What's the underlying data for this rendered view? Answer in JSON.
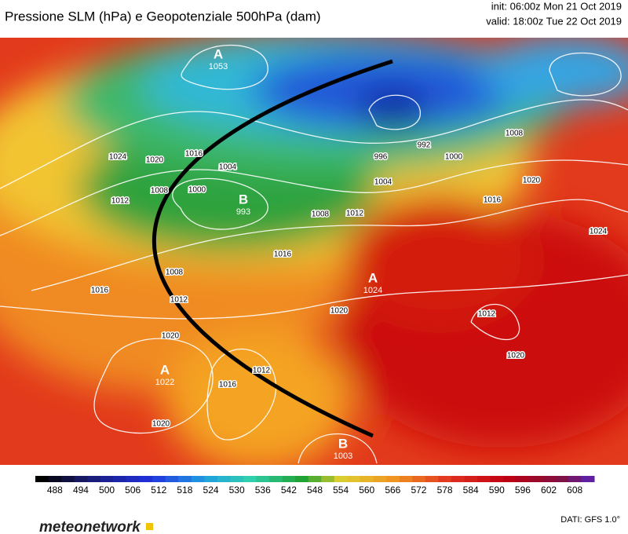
{
  "header": {
    "title": "Pressione SLM (hPa) e Geopotenziale 500hPa (dam)",
    "init": "init: 06:00z Mon 21 Oct 2019",
    "valid": "valid: 18:00z Tue 22 Oct 2019"
  },
  "centers": [
    {
      "letter": "A",
      "value": 1053
    },
    {
      "letter": "B",
      "value": 993
    },
    {
      "letter": "A",
      "value": 1024
    },
    {
      "letter": "A",
      "value": 1022
    },
    {
      "letter": "B",
      "value": 1003
    }
  ],
  "isobar_labels": [
    1024,
    1020,
    1016,
    1004,
    1000,
    1012,
    1008,
    1012,
    1016,
    1020,
    1008,
    1016,
    1016,
    1012,
    996,
    992,
    1000,
    1004,
    1008,
    1012,
    1016,
    1020,
    1024,
    1020,
    1020,
    1008,
    1020,
    1012
  ],
  "colorbar": {
    "labels": [
      488,
      494,
      500,
      506,
      512,
      518,
      524,
      530,
      536,
      542,
      548,
      554,
      560,
      566,
      572,
      578,
      584,
      590,
      596,
      602,
      608
    ]
  },
  "footer": {
    "logo": "meteonetwork",
    "source": "DATI: GFS 1.0°"
  }
}
